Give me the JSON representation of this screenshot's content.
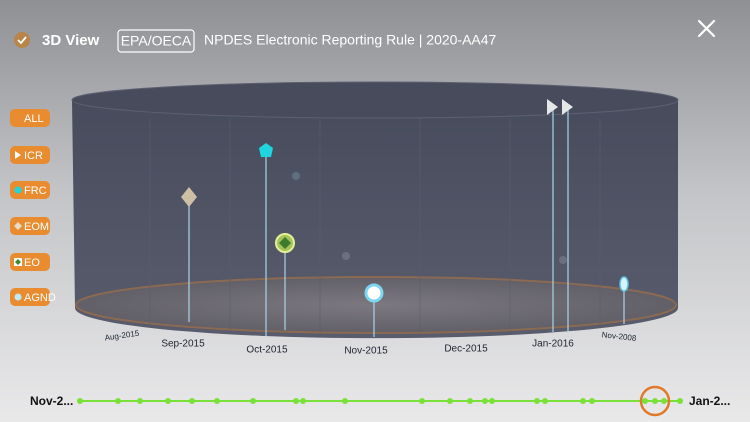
{
  "header": {
    "title": "3D View",
    "agency": "EPA/OECA",
    "rule": "NPDES Electronic Reporting Rule | 2020-AA47"
  },
  "filters": [
    "ALL",
    "ICR",
    "FRC",
    "EOM",
    "EO",
    "AGND"
  ],
  "axis_labels": [
    "Aug-2015",
    "Sep-2015",
    "Oct-2015",
    "Nov-2015",
    "Dec-2015",
    "Jan-2016",
    "Nov-2008"
  ],
  "timeline": {
    "start": "Nov-2...",
    "end": "Jan-2..."
  }
}
